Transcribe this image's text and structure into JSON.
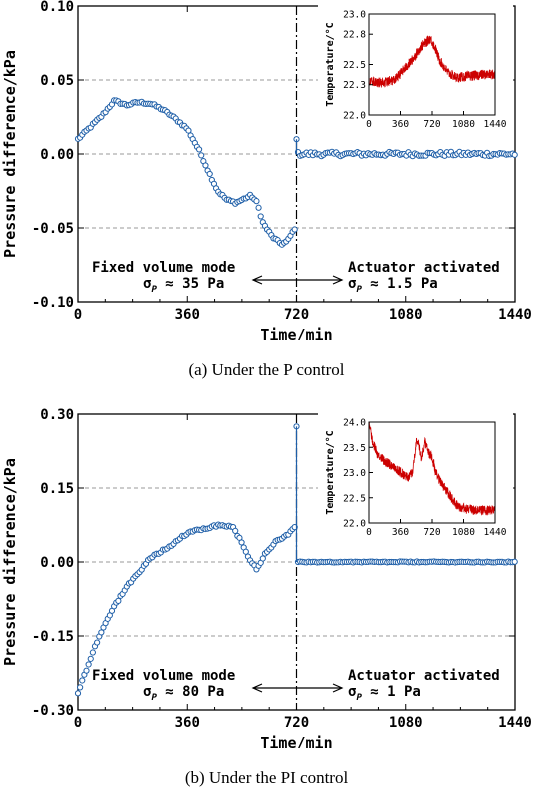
{
  "chart_data": [
    {
      "type": "scatter",
      "xlabel": "Time/min",
      "ylabel": "Pressure difference/kPa",
      "xlim": [
        0,
        1440
      ],
      "ylim": [
        -0.1,
        0.1
      ],
      "xticks": [
        0,
        360,
        720,
        1080,
        1440
      ],
      "yticks": [
        -0.1,
        -0.05,
        0.0,
        0.05,
        0.1
      ],
      "ytick_labels": [
        "-0.10",
        "-0.05",
        "0.00",
        "0.05",
        "0.10"
      ],
      "grid": "horizontal dashed",
      "caption": "(a) Under the P control",
      "switch_time": 720,
      "annotation_left": {
        "line1": "Fixed volume mode",
        "sigma_symbol": "σ",
        "sigma_sub": "P",
        "line2": " ≈ 35 Pa"
      },
      "annotation_right": {
        "line1": "Actuator activated",
        "sigma_symbol": "σ",
        "sigma_sub": "P",
        "line2": " ≈ 1.5 Pa"
      },
      "series_color": "#1f5fa8",
      "mode1_keypoints": [
        [
          0,
          0.01
        ],
        [
          40,
          0.018
        ],
        [
          80,
          0.026
        ],
        [
          120,
          0.036
        ],
        [
          160,
          0.033
        ],
        [
          200,
          0.035
        ],
        [
          240,
          0.034
        ],
        [
          280,
          0.03
        ],
        [
          320,
          0.024
        ],
        [
          360,
          0.017
        ],
        [
          400,
          0.002
        ],
        [
          430,
          -0.012
        ],
        [
          460,
          -0.025
        ],
        [
          490,
          -0.031
        ],
        [
          520,
          -0.033
        ],
        [
          550,
          -0.03
        ],
        [
          570,
          -0.028
        ],
        [
          590,
          -0.033
        ],
        [
          610,
          -0.047
        ],
        [
          640,
          -0.056
        ],
        [
          670,
          -0.061
        ],
        [
          690,
          -0.059
        ],
        [
          715,
          -0.05
        ]
      ],
      "mode2_start_value": 0.01,
      "mode2_level": 0.0,
      "mode2_noise": 0.0015,
      "inset": {
        "ylabel": "Temperature/°C",
        "xlim": [
          0,
          1440
        ],
        "ylim": [
          22.0,
          23.0
        ],
        "xticks": [
          0,
          360,
          720,
          1080,
          1440
        ],
        "yticks": [
          22.0,
          22.3,
          22.5,
          22.8,
          23.0
        ],
        "ytick_labels": [
          "22.0",
          "22.3",
          "22.5",
          "22.8",
          "23.0"
        ],
        "color": "#cc0000",
        "keypoints": [
          [
            0,
            22.33
          ],
          [
            150,
            22.32
          ],
          [
            300,
            22.35
          ],
          [
            400,
            22.45
          ],
          [
            500,
            22.55
          ],
          [
            600,
            22.68
          ],
          [
            650,
            22.72
          ],
          [
            700,
            22.76
          ],
          [
            760,
            22.65
          ],
          [
            800,
            22.55
          ],
          [
            900,
            22.42
          ],
          [
            1000,
            22.37
          ],
          [
            1100,
            22.38
          ],
          [
            1200,
            22.39
          ],
          [
            1300,
            22.4
          ],
          [
            1440,
            22.4
          ]
        ],
        "noise": 0.05
      }
    },
    {
      "type": "scatter",
      "xlabel": "Time/min",
      "ylabel": "Pressure difference/kPa",
      "xlim": [
        0,
        1440
      ],
      "ylim": [
        -0.3,
        0.3
      ],
      "xticks": [
        0,
        360,
        720,
        1080,
        1440
      ],
      "yticks": [
        -0.3,
        -0.15,
        0.0,
        0.15,
        0.3
      ],
      "ytick_labels": [
        "-0.30",
        "-0.15",
        "0.00",
        "0.15",
        "0.30"
      ],
      "grid": "horizontal dashed",
      "caption": "(b) Under the PI control",
      "switch_time": 720,
      "annotation_left": {
        "line1": "Fixed volume mode",
        "sigma_symbol": "σ",
        "sigma_sub": "P",
        "line2": " ≈ 80 Pa"
      },
      "annotation_right": {
        "line1": "Actuator activated",
        "sigma_symbol": "σ",
        "sigma_sub": "P",
        "line2": " ≈ 1 Pa"
      },
      "series_color": "#1f5fa8",
      "mode1_keypoints": [
        [
          0,
          -0.265
        ],
        [
          30,
          -0.215
        ],
        [
          60,
          -0.165
        ],
        [
          90,
          -0.125
        ],
        [
          120,
          -0.09
        ],
        [
          150,
          -0.06
        ],
        [
          180,
          -0.035
        ],
        [
          210,
          -0.015
        ],
        [
          240,
          0.01
        ],
        [
          270,
          0.02
        ],
        [
          300,
          0.03
        ],
        [
          330,
          0.045
        ],
        [
          360,
          0.058
        ],
        [
          400,
          0.066
        ],
        [
          440,
          0.072
        ],
        [
          480,
          0.075
        ],
        [
          510,
          0.07
        ],
        [
          530,
          0.05
        ],
        [
          560,
          0.01
        ],
        [
          590,
          -0.015
        ],
        [
          620,
          0.02
        ],
        [
          650,
          0.04
        ],
        [
          680,
          0.05
        ],
        [
          700,
          0.06
        ],
        [
          715,
          0.07
        ]
      ],
      "mode2_start_value": 0.275,
      "mode2_level": 0.0,
      "mode2_noise": 0.001,
      "inset": {
        "ylabel": "Temperature/°C",
        "xlim": [
          0,
          1440
        ],
        "ylim": [
          22.0,
          24.0
        ],
        "xticks": [
          0,
          360,
          720,
          1080,
          1440
        ],
        "yticks": [
          22.0,
          22.5,
          23.0,
          23.5,
          24.0
        ],
        "ytick_labels": [
          "22.0",
          "22.5",
          "23.0",
          "23.5",
          "24.0"
        ],
        "color": "#cc0000",
        "keypoints": [
          [
            0,
            24.0
          ],
          [
            40,
            23.6
          ],
          [
            100,
            23.35
          ],
          [
            200,
            23.2
          ],
          [
            300,
            23.1
          ],
          [
            400,
            22.95
          ],
          [
            450,
            22.9
          ],
          [
            500,
            23.0
          ],
          [
            540,
            23.6
          ],
          [
            560,
            23.6
          ],
          [
            600,
            23.3
          ],
          [
            640,
            23.6
          ],
          [
            680,
            23.4
          ],
          [
            720,
            23.3
          ],
          [
            760,
            23.0
          ],
          [
            820,
            22.8
          ],
          [
            900,
            22.6
          ],
          [
            960,
            22.45
          ],
          [
            1000,
            22.35
          ],
          [
            1060,
            22.3
          ],
          [
            1200,
            22.25
          ],
          [
            1300,
            22.25
          ],
          [
            1440,
            22.25
          ]
        ],
        "noise": 0.1
      }
    }
  ]
}
